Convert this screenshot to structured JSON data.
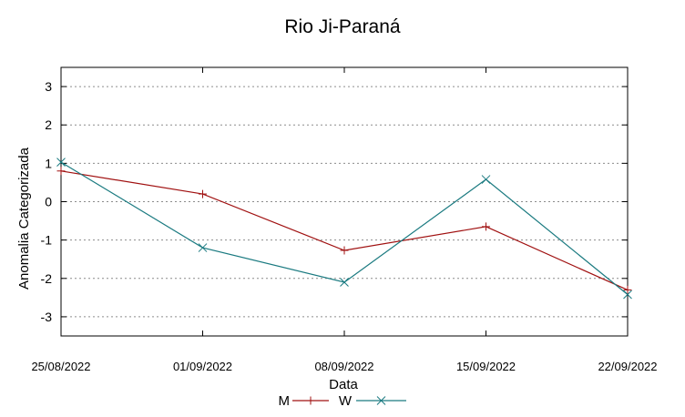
{
  "chart_data": {
    "type": "line",
    "title": "Rio Ji-Paraná",
    "xlabel": "Data",
    "ylabel": "Anomalia Categorizada",
    "categories": [
      "25/08/2022",
      "01/09/2022",
      "08/09/2022",
      "15/09/2022",
      "22/09/2022"
    ],
    "ylim": [
      -3.5,
      3.5
    ],
    "yticks": [
      -3,
      -2,
      -1,
      0,
      1,
      2,
      3
    ],
    "grid": true,
    "legend_position": "bottom-center",
    "series": [
      {
        "name": "M",
        "values": [
          0.8,
          0.2,
          -1.27,
          -0.65,
          -2.3
        ],
        "color": "#a01010",
        "marker": "plus"
      },
      {
        "name": "W",
        "values": [
          1.03,
          -1.2,
          -2.1,
          0.58,
          -2.42
        ],
        "color": "#1a7a80",
        "marker": "cross"
      }
    ]
  }
}
